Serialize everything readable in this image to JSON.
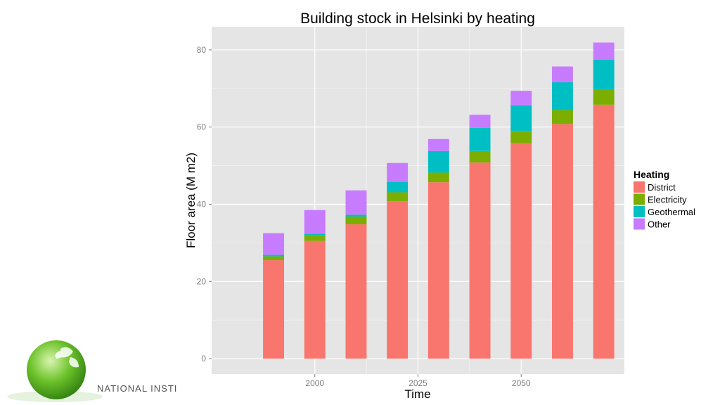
{
  "chart_data": {
    "type": "bar",
    "stacked": true,
    "title": "Building stock in Helsinki by heating",
    "xlabel": "Time",
    "ylabel": "Floor area (M m2)",
    "x_ticks": [
      2000,
      2025,
      2050
    ],
    "y_ticks": [
      0,
      20,
      40,
      60,
      80
    ],
    "xlim": [
      1975,
      2075
    ],
    "ylim": [
      -4,
      86
    ],
    "x": [
      1990,
      2000,
      2010,
      2020,
      2030,
      2040,
      2050,
      2060,
      2070
    ],
    "series": [
      {
        "name": "District",
        "color": "#F8766D",
        "values": [
          25.5,
          30.5,
          34.8,
          40.8,
          45.7,
          50.8,
          55.8,
          60.8,
          65.8
        ]
      },
      {
        "name": "Electricity",
        "color": "#7CAE00",
        "values": [
          1.0,
          1.5,
          2.0,
          2.3,
          2.5,
          3.0,
          3.2,
          3.6,
          4.0
        ]
      },
      {
        "name": "Geothermal",
        "color": "#00BFC4",
        "values": [
          0.4,
          0.4,
          0.5,
          2.7,
          5.6,
          6.0,
          6.6,
          7.2,
          7.7
        ]
      },
      {
        "name": "Other",
        "color": "#C77CFF",
        "values": [
          5.6,
          6.1,
          6.3,
          4.9,
          3.1,
          3.4,
          3.8,
          4.1,
          4.4
        ]
      }
    ],
    "legend": {
      "title": "Heating",
      "position": "right"
    },
    "grid": true
  },
  "branding": {
    "logo_text": "NATIONAL INSTI"
  },
  "colors": {
    "panel": "#E5E5E5",
    "grid": "#FFFFFF",
    "text": "#000000",
    "tick_text": "#7F7F7F"
  }
}
